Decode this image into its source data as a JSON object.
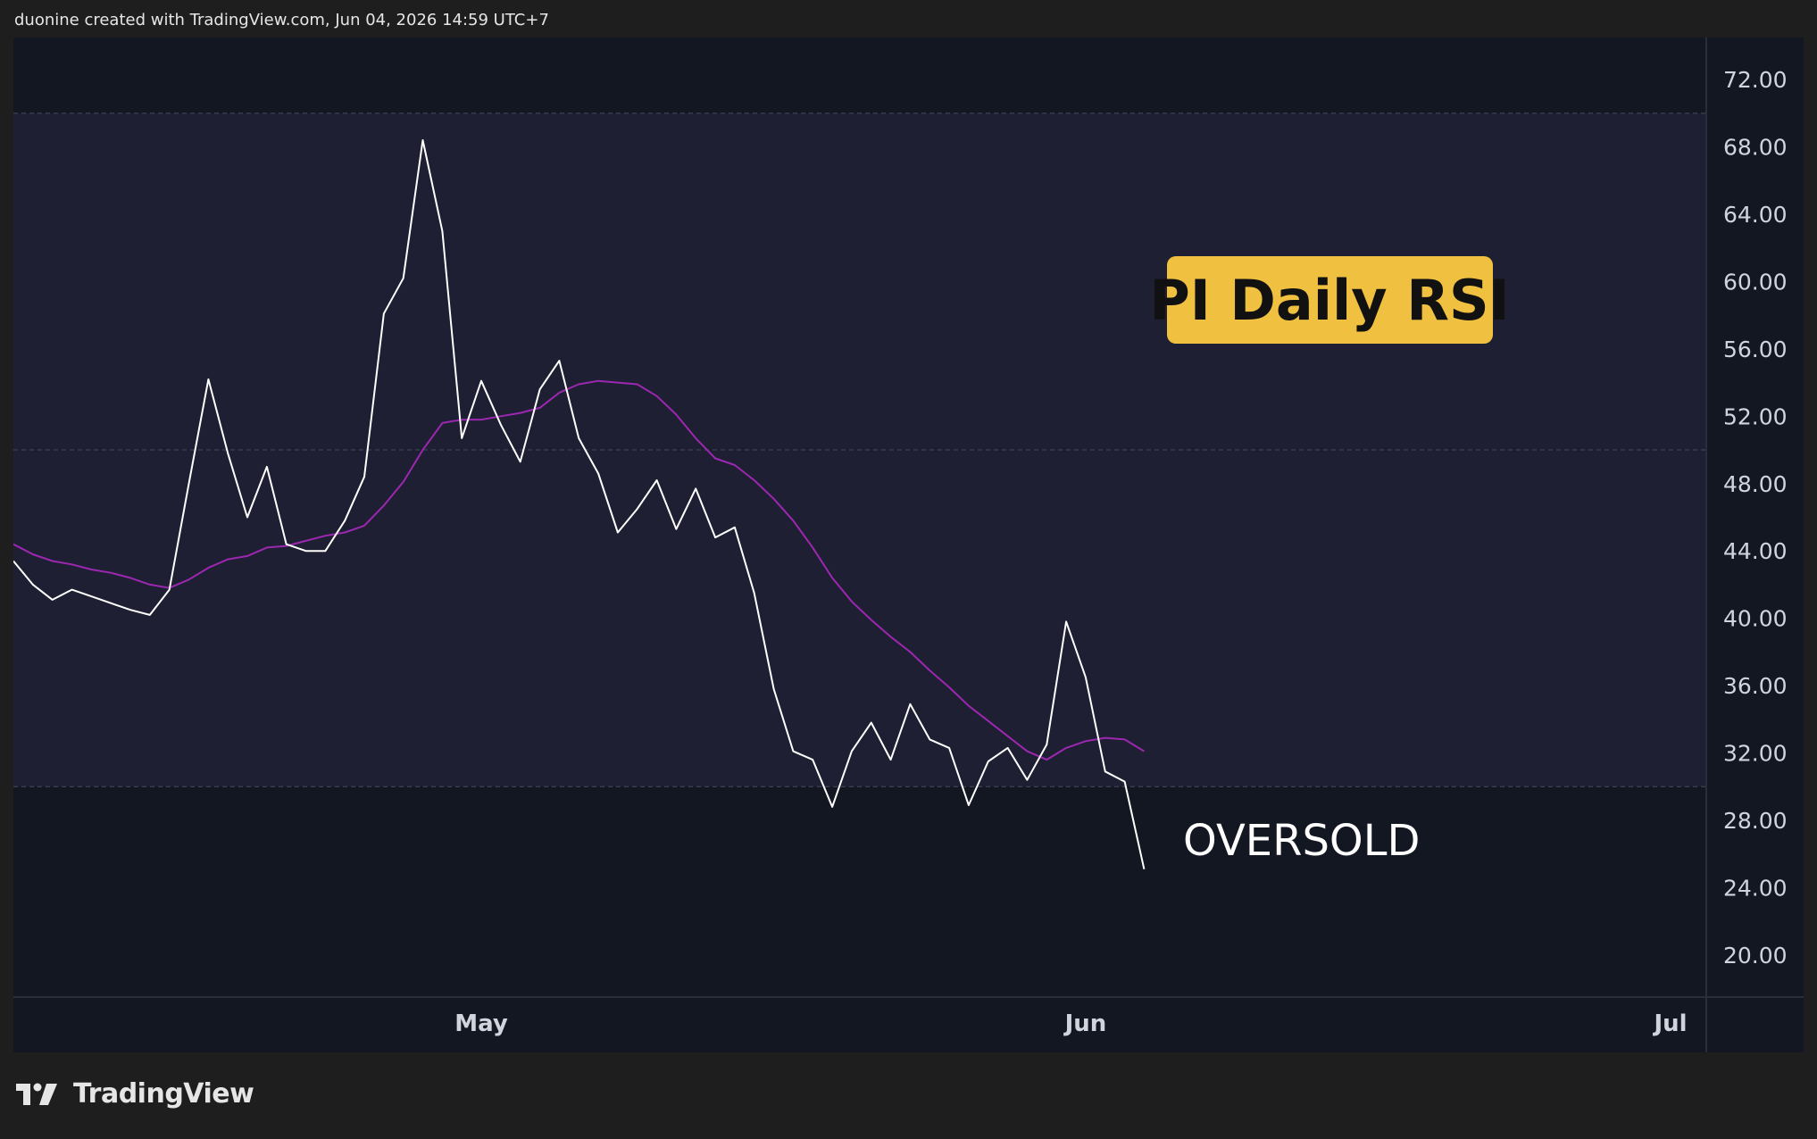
{
  "header": {
    "text": "duonine created with TradingView.com, Jun 04, 2026 14:59 UTC+7"
  },
  "branding": {
    "logo_text": "TradingView",
    "logo_icon": "tradingview-logo-icon"
  },
  "colors": {
    "background": "#131722",
    "band_fill": "#1f1f33",
    "rsi_line": "#ffffff",
    "ma_line": "#9c27b0",
    "title_box": "#f0c040"
  },
  "chart_data": {
    "type": "line",
    "title": "PI Daily RSI",
    "annotation": "OVERSOLD",
    "xlabel": "",
    "ylabel": "",
    "ylim": [
      17.5,
      74.5
    ],
    "y_ticks": [
      "72.00",
      "68.00",
      "64.00",
      "60.00",
      "56.00",
      "52.00",
      "48.00",
      "44.00",
      "40.00",
      "36.00",
      "32.00",
      "28.00",
      "24.00",
      "20.00"
    ],
    "x_ticks": [
      {
        "label": "May",
        "date": "2026-05-01"
      },
      {
        "label": "Jun",
        "date": "2026-06-01"
      },
      {
        "label": "Jul",
        "date": "2026-07-01"
      }
    ],
    "x_range": [
      "2026-04-07",
      "2026-07-01"
    ],
    "bands": {
      "upper": 70,
      "middle": 50,
      "lower": 30
    },
    "series": [
      {
        "key": "rsi",
        "dates": [
          "2026-04-07",
          "2026-04-08",
          "2026-04-09",
          "2026-04-10",
          "2026-04-11",
          "2026-04-12",
          "2026-04-13",
          "2026-04-14",
          "2026-04-15",
          "2026-04-16",
          "2026-04-17",
          "2026-04-18",
          "2026-04-19",
          "2026-04-20",
          "2026-04-21",
          "2026-04-22",
          "2026-04-23",
          "2026-04-24",
          "2026-04-25",
          "2026-04-26",
          "2026-04-27",
          "2026-04-28",
          "2026-04-29",
          "2026-04-30",
          "2026-05-01",
          "2026-05-02",
          "2026-05-03",
          "2026-05-04",
          "2026-05-05",
          "2026-05-06",
          "2026-05-07",
          "2026-05-08",
          "2026-05-09",
          "2026-05-10",
          "2026-05-11",
          "2026-05-12",
          "2026-05-13",
          "2026-05-14",
          "2026-05-15",
          "2026-05-16",
          "2026-05-17",
          "2026-05-18",
          "2026-05-19",
          "2026-05-20",
          "2026-05-21",
          "2026-05-22",
          "2026-05-23",
          "2026-05-24",
          "2026-05-25",
          "2026-05-26",
          "2026-05-27",
          "2026-05-28",
          "2026-05-29",
          "2026-05-30",
          "2026-05-31",
          "2026-06-01",
          "2026-06-02",
          "2026-06-03",
          "2026-06-04"
        ],
        "values": [
          43.4,
          42.0,
          41.1,
          41.7,
          41.3,
          40.9,
          40.5,
          40.2,
          41.7,
          48.0,
          54.2,
          49.8,
          46.0,
          49.0,
          44.4,
          44.0,
          44.0,
          45.8,
          48.4,
          58.1,
          60.2,
          68.4,
          63.0,
          50.7,
          54.1,
          51.5,
          49.3,
          53.6,
          55.3,
          50.7,
          48.6,
          45.1,
          46.5,
          48.2,
          45.3,
          47.7,
          44.8,
          45.4,
          41.5,
          35.8,
          32.1,
          31.6,
          28.8,
          32.1,
          33.8,
          31.6,
          34.9,
          32.8,
          32.3,
          28.9,
          31.5,
          32.3,
          30.4,
          32.5,
          39.8,
          36.5,
          30.9,
          30.3,
          25.1
        ]
      },
      {
        "key": "rsi_ma",
        "dates": [
          "2026-04-07",
          "2026-04-08",
          "2026-04-09",
          "2026-04-10",
          "2026-04-11",
          "2026-04-12",
          "2026-04-13",
          "2026-04-14",
          "2026-04-15",
          "2026-04-16",
          "2026-04-17",
          "2026-04-18",
          "2026-04-19",
          "2026-04-20",
          "2026-04-21",
          "2026-04-22",
          "2026-04-23",
          "2026-04-24",
          "2026-04-25",
          "2026-04-26",
          "2026-04-27",
          "2026-04-28",
          "2026-04-29",
          "2026-04-30",
          "2026-05-01",
          "2026-05-02",
          "2026-05-03",
          "2026-05-04",
          "2026-05-05",
          "2026-05-06",
          "2026-05-07",
          "2026-05-08",
          "2026-05-09",
          "2026-05-10",
          "2026-05-11",
          "2026-05-12",
          "2026-05-13",
          "2026-05-14",
          "2026-05-15",
          "2026-05-16",
          "2026-05-17",
          "2026-05-18",
          "2026-05-19",
          "2026-05-20",
          "2026-05-21",
          "2026-05-22",
          "2026-05-23",
          "2026-05-24",
          "2026-05-25",
          "2026-05-26",
          "2026-05-27",
          "2026-05-28",
          "2026-05-29",
          "2026-05-30",
          "2026-05-31",
          "2026-06-01",
          "2026-06-02",
          "2026-06-03",
          "2026-06-04"
        ],
        "values": [
          44.4,
          43.8,
          43.4,
          43.2,
          42.9,
          42.7,
          42.4,
          42.0,
          41.8,
          42.3,
          43.0,
          43.5,
          43.7,
          44.2,
          44.3,
          44.6,
          44.9,
          45.1,
          45.5,
          46.7,
          48.1,
          50.0,
          51.6,
          51.8,
          51.8,
          52.0,
          52.2,
          52.5,
          53.4,
          53.9,
          54.1,
          54.0,
          53.9,
          53.2,
          52.1,
          50.7,
          49.5,
          49.1,
          48.2,
          47.1,
          45.8,
          44.2,
          42.4,
          41.0,
          39.9,
          38.9,
          38.0,
          36.9,
          35.9,
          34.8,
          33.9,
          33.0,
          32.1,
          31.6,
          32.3,
          32.7,
          32.9,
          32.8,
          32.1
        ]
      }
    ]
  }
}
